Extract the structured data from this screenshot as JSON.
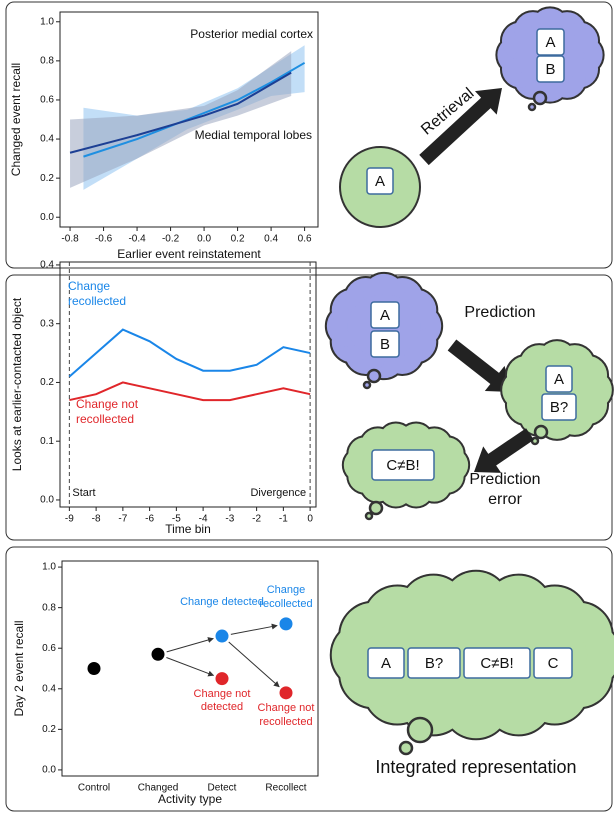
{
  "chart_data": [
    {
      "type": "line",
      "y_label": "Changed event recall",
      "x_label": "Earlier event reinstatement",
      "xlim": [
        -0.86,
        0.68
      ],
      "xticks": [
        -0.8,
        -0.6,
        -0.4,
        -0.2,
        {
          "value": 0,
          "label": "0.0"
        },
        0.2,
        0.4,
        0.6
      ],
      "ylim": [
        -0.05,
        1.05
      ],
      "yticks": [
        {
          "value": 0,
          "label": "0.0"
        },
        0.2,
        0.4,
        0.6,
        0.8,
        {
          "value": 1,
          "label": "1.0"
        }
      ],
      "series": [
        {
          "name": "Posterior medial cortex",
          "color": "#1e8fe1",
          "band_color": "#8fc2f0",
          "x": [
            -0.72,
            -0.4,
            -0.1,
            0.2,
            0.4,
            0.6
          ],
          "values": [
            0.31,
            0.4,
            0.5,
            0.6,
            0.69,
            0.79
          ],
          "lower": [
            0.14,
            0.3,
            0.45,
            0.55,
            0.62,
            0.64
          ],
          "upper": [
            0.56,
            0.52,
            0.55,
            0.66,
            0.77,
            0.88
          ]
        },
        {
          "name": "Medial temporal lobes",
          "color": "#1c3f94",
          "band_color": "#9aa6bf",
          "x": [
            -0.8,
            -0.4,
            0,
            0.2,
            0.52
          ],
          "values": [
            0.33,
            0.42,
            0.52,
            0.58,
            0.74
          ],
          "lower": [
            0.15,
            0.3,
            0.47,
            0.52,
            0.62
          ],
          "upper": [
            0.5,
            0.52,
            0.57,
            0.65,
            0.85
          ]
        }
      ]
    },
    {
      "type": "line",
      "y_label": "Looks at earlier-contacted object",
      "x_label": "Time bin",
      "xlim": [
        -9.35,
        0.22
      ],
      "xticks": [
        -9,
        -8,
        -7,
        -6,
        -5,
        -4,
        -3,
        -2,
        -1,
        0
      ],
      "ylim": [
        -0.012,
        0.405
      ],
      "yticks": [
        {
          "value": 0,
          "label": "0.0"
        },
        0.1,
        0.2,
        0.3,
        0.4
      ],
      "x": [
        -9,
        -8,
        -7,
        -6,
        -5,
        -4,
        -3,
        -2,
        -1,
        0
      ],
      "vlines": [
        -9,
        0
      ],
      "annotations": [
        "Start",
        "Divergence"
      ],
      "series": [
        {
          "name": "Change recollected",
          "color": "#1a86e8",
          "values": [
            0.21,
            0.25,
            0.29,
            0.27,
            0.24,
            0.22,
            0.22,
            0.23,
            0.26,
            0.25
          ]
        },
        {
          "name": "Change not recollected",
          "color": "#e0262a",
          "values": [
            0.17,
            0.18,
            0.2,
            0.19,
            0.18,
            0.17,
            0.17,
            0.18,
            0.19,
            0.18
          ]
        }
      ]
    },
    {
      "type": "dot",
      "y_label": "Day 2 event recall",
      "x_label": "Activity type",
      "categories": [
        "Control",
        "Changed",
        "Detect",
        "Recollect"
      ],
      "ylim": [
        -0.03,
        1.03
      ],
      "yticks": [
        {
          "value": 0,
          "label": "0.0"
        },
        0.2,
        0.4,
        0.6,
        0.8,
        {
          "value": 1,
          "label": "1.0"
        }
      ],
      "series": [
        {
          "color": "#000000",
          "values": [
            0.5,
            0.57,
            null,
            null
          ],
          "point_labels": [
            null,
            null,
            null,
            null
          ]
        },
        {
          "color": "#1a86e8",
          "values": [
            null,
            null,
            0.66,
            0.72
          ],
          "point_labels": [
            null,
            null,
            "Change detected",
            "Change recollected"
          ]
        },
        {
          "color": "#e0262a",
          "values": [
            null,
            null,
            0.45,
            0.38
          ],
          "point_labels": [
            null,
            null,
            "Change not detected",
            "Change not recollected"
          ]
        }
      ]
    }
  ],
  "diagrams": {
    "panel1": {
      "circle_items": [
        "A"
      ],
      "arrow_label": "Retrieval",
      "cloud_items": [
        "A",
        "B"
      ]
    },
    "panel2": {
      "cloud1_items": [
        "A",
        "B"
      ],
      "arrow1_label": "Prediction",
      "cloud2_items": [
        "A",
        "B?"
      ],
      "cloud3_items": [
        "C≠B!"
      ],
      "arrow2_label": "Prediction error"
    },
    "panel3": {
      "cloud_items": [
        "A",
        "B?",
        "C≠B!",
        "C"
      ],
      "caption": "Integrated representation"
    }
  }
}
